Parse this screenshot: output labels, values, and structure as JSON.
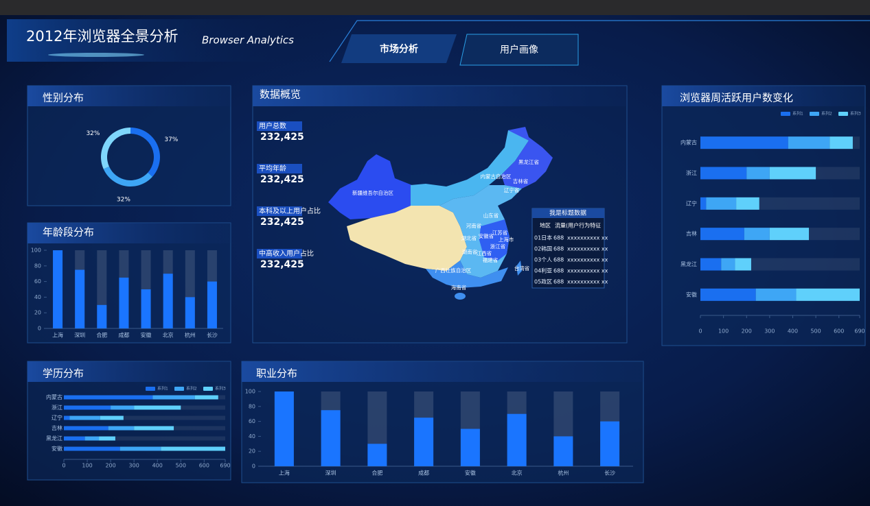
{
  "header": {
    "title": "2012年浏览器全景分析",
    "subtitle": "Browser Analytics"
  },
  "tabs": [
    "市场分析",
    "用户画像"
  ],
  "overview": {
    "title": "数据概览",
    "stats": [
      {
        "label": "用户总数",
        "value": "232,425"
      },
      {
        "label": "平均年龄",
        "value": "232,425"
      },
      {
        "label": "本科及以上用户占比",
        "value": "232,425"
      },
      {
        "label": "中高收入用户占比",
        "value": "232,425"
      }
    ]
  },
  "map": {
    "labels": [
      "新疆维吾尔自治区",
      "黑龙江省",
      "内蒙古自治区",
      "吉林省",
      "辽宁省",
      "山东省",
      "河南省",
      "江苏省",
      "上海市",
      "安徽省",
      "浙江省",
      "湖北省",
      "湖南省",
      "江西省",
      "福建省",
      "广西壮族自治区",
      "台湾省",
      "海南省"
    ],
    "table": {
      "title": "我是标题数据",
      "columns": [
        "地区",
        "流量(用户行为特征"
      ],
      "rows": [
        [
          "01日本",
          "688",
          "xxxxxxxxxx xx"
        ],
        [
          "02韩国",
          "688",
          "xxxxxxxxxx xx"
        ],
        [
          "03个人",
          "688",
          "xxxxxxxxxx xx"
        ],
        [
          "04利亚",
          "688",
          "xxxxxxxxxx xx"
        ],
        [
          "05政区",
          "688",
          "xxxxxxxxxx xx"
        ]
      ]
    }
  },
  "chart_data": [
    {
      "type": "pie",
      "title": "性别分布",
      "values": [
        37,
        32,
        32
      ],
      "value_labels": [
        "37%",
        "32%",
        "32%"
      ],
      "colors": [
        "#1a6ff0",
        "#3ea6f5",
        "#7fd6fb"
      ]
    },
    {
      "type": "bar",
      "title": "年龄段分布",
      "categories": [
        "上海",
        "深圳",
        "合肥",
        "成都",
        "安徽",
        "北京",
        "杭州",
        "长沙"
      ],
      "values": [
        100,
        75,
        30,
        65,
        50,
        70,
        40,
        60
      ],
      "color": "#1a75ff",
      "ylim": [
        0,
        100
      ],
      "yticks": [
        0,
        20,
        40,
        60,
        80,
        100
      ]
    },
    {
      "type": "hbar",
      "title": "学历分布",
      "categories": [
        "内蒙古",
        "浙江",
        "辽宁",
        "吉林",
        "黑龙江",
        "安徽"
      ],
      "series": [
        {
          "name": "系列1",
          "color": "#1a6ff0",
          "values": [
            380,
            200,
            25,
            190,
            90,
            240
          ]
        },
        {
          "name": "系列2",
          "color": "#3ea6f5",
          "values": [
            180,
            100,
            130,
            110,
            60,
            175
          ]
        },
        {
          "name": "系列3",
          "color": "#5fd0fb",
          "values": [
            100,
            200,
            100,
            170,
            70,
            275
          ]
        }
      ],
      "xlim": [
        0,
        690
      ],
      "xticks": [
        0,
        100,
        200,
        300,
        400,
        500,
        600,
        690
      ]
    },
    {
      "type": "bar",
      "title": "职业分布",
      "categories": [
        "上海",
        "深圳",
        "合肥",
        "成都",
        "安徽",
        "北京",
        "杭州",
        "长沙"
      ],
      "values": [
        100,
        75,
        30,
        65,
        50,
        70,
        40,
        60
      ],
      "color": "#1a75ff",
      "ylim": [
        0,
        100
      ],
      "yticks": [
        0,
        20,
        40,
        60,
        80,
        100
      ]
    },
    {
      "type": "hbar",
      "title": "浏览器周活跃用户数变化",
      "categories": [
        "内蒙古",
        "浙江",
        "辽宁",
        "吉林",
        "黑龙江",
        "安徽"
      ],
      "series": [
        {
          "name": "系列1",
          "color": "#1a6ff0",
          "values": [
            380,
            200,
            25,
            190,
            90,
            240
          ]
        },
        {
          "name": "系列2",
          "color": "#3ea6f5",
          "values": [
            180,
            100,
            130,
            110,
            60,
            175
          ]
        },
        {
          "name": "系列3",
          "color": "#5fd0fb",
          "values": [
            100,
            200,
            100,
            170,
            70,
            275
          ]
        }
      ],
      "xlim": [
        0,
        690
      ],
      "xticks": [
        0,
        100,
        200,
        300,
        400,
        500,
        600,
        690
      ]
    }
  ]
}
